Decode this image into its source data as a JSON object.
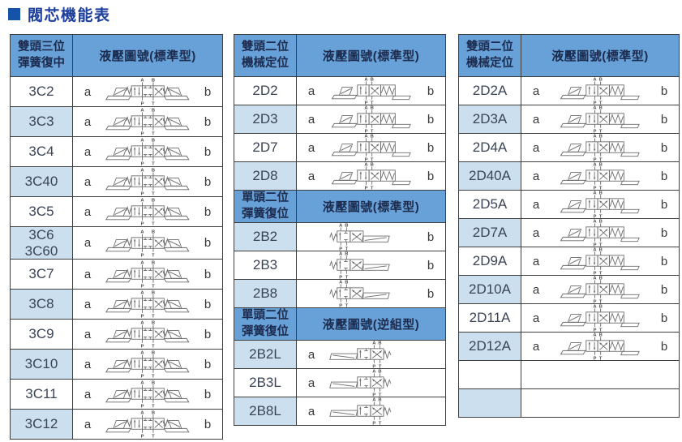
{
  "title": "閥芯機能表",
  "colors": {
    "header_bg": "#67a1d7",
    "row_alt_bg": "#cbdfef",
    "border": "#3e3e3e",
    "title_text": "#1e3f9c",
    "bullet": "#1553a8",
    "symbol_line": "#6b6b6b"
  },
  "valve_ports": {
    "a": "A",
    "b": "B",
    "p": "P",
    "t": "T"
  },
  "tables": [
    {
      "id": "left",
      "sections": [
        {
          "header": {
            "col1": "雙頭三位\n彈簧復中",
            "col2": "液壓圖號(標準型)"
          },
          "rows": [
            {
              "code": "3C2",
              "a": "a",
              "b": "b",
              "symbol": "3pos",
              "shade": false
            },
            {
              "code": "3C3",
              "a": "a",
              "b": "b",
              "symbol": "3pos",
              "shade": true
            },
            {
              "code": "3C4",
              "a": "a",
              "b": "b",
              "symbol": "3pos",
              "shade": false
            },
            {
              "code": "3C40",
              "a": "a",
              "b": "b",
              "symbol": "3pos",
              "shade": true
            },
            {
              "code": "3C5",
              "a": "a",
              "b": "b",
              "symbol": "3pos",
              "shade": false
            },
            {
              "code": "3C6\n3C60",
              "a": "a",
              "b": "b",
              "symbol": "3pos",
              "shade": true
            },
            {
              "code": "3C7",
              "a": "a",
              "b": "b",
              "symbol": "3pos",
              "shade": false
            },
            {
              "code": "3C8",
              "a": "a",
              "b": "b",
              "symbol": "3pos",
              "shade": true
            },
            {
              "code": "3C9",
              "a": "a",
              "b": "b",
              "symbol": "3pos",
              "shade": false
            },
            {
              "code": "3C10",
              "a": "a",
              "b": "b",
              "symbol": "3pos",
              "shade": true
            },
            {
              "code": "3C11",
              "a": "a",
              "b": "b",
              "symbol": "3pos",
              "shade": false
            },
            {
              "code": "3C12",
              "a": "a",
              "b": "b",
              "symbol": "3pos",
              "shade": true
            }
          ]
        }
      ]
    },
    {
      "id": "middle",
      "sections": [
        {
          "header": {
            "col1": "雙頭二位\n機械定位",
            "col2": "液壓圖號(標準型)"
          },
          "rows": [
            {
              "code": "2D2",
              "a": "a",
              "b": "b",
              "symbol": "2pos",
              "shade": false
            },
            {
              "code": "2D3",
              "a": "a",
              "b": "b",
              "symbol": "2pos",
              "shade": true
            },
            {
              "code": "2D7",
              "a": "a",
              "b": "b",
              "symbol": "2pos",
              "shade": false
            },
            {
              "code": "2D8",
              "a": "a",
              "b": "b",
              "symbol": "2pos",
              "shade": true
            }
          ]
        },
        {
          "header": {
            "col1": "單頭二位\n彈簧復位",
            "col2": "液壓圖號(標準型)"
          },
          "rows": [
            {
              "code": "2B2",
              "a": "",
              "b": "b",
              "symbol": "2b",
              "shade": true
            },
            {
              "code": "2B3",
              "a": "",
              "b": "b",
              "symbol": "2b",
              "shade": false
            },
            {
              "code": "2B8",
              "a": "",
              "b": "b",
              "symbol": "2b",
              "shade": true
            }
          ]
        },
        {
          "header": {
            "col1": "單頭二位\n彈簧復位",
            "col2": "液壓圖號(逆組型)"
          },
          "rows": [
            {
              "code": "2B2L",
              "a": "a",
              "b": "",
              "symbol": "2bl",
              "shade": true
            },
            {
              "code": "2B3L",
              "a": "a",
              "b": "",
              "symbol": "2bl",
              "shade": false
            },
            {
              "code": "2B8L",
              "a": "a",
              "b": "",
              "symbol": "2bl",
              "shade": true
            }
          ]
        }
      ]
    },
    {
      "id": "right",
      "sections": [
        {
          "header": {
            "col1": "雙頭二位\n機械定位",
            "col2": "液壓圖號(標準型)"
          },
          "rows": [
            {
              "code": "2D2A",
              "a": "a",
              "b": "b",
              "symbol": "2pos",
              "shade": false
            },
            {
              "code": "2D3A",
              "a": "a",
              "b": "b",
              "symbol": "2pos",
              "shade": true
            },
            {
              "code": "2D4A",
              "a": "a",
              "b": "b",
              "symbol": "2pos",
              "shade": false
            },
            {
              "code": "2D40A",
              "a": "a",
              "b": "b",
              "symbol": "2pos",
              "shade": true
            },
            {
              "code": "2D5A",
              "a": "a",
              "b": "b",
              "symbol": "2pos",
              "shade": false
            },
            {
              "code": "2D7A",
              "a": "a",
              "b": "b",
              "symbol": "2pos",
              "shade": true
            },
            {
              "code": "2D9A",
              "a": "a",
              "b": "b",
              "symbol": "2pos",
              "shade": false
            },
            {
              "code": "2D10A",
              "a": "a",
              "b": "b",
              "symbol": "2pos",
              "shade": true
            },
            {
              "code": "2D11A",
              "a": "a",
              "b": "b",
              "symbol": "2pos",
              "shade": false
            },
            {
              "code": "2D12A",
              "a": "a",
              "b": "b",
              "symbol": "2pos",
              "shade": true
            },
            {
              "code": "",
              "a": "",
              "b": "",
              "symbol": "",
              "shade": false
            },
            {
              "code": "",
              "a": "",
              "b": "",
              "symbol": "",
              "shade": true
            }
          ]
        }
      ]
    }
  ]
}
